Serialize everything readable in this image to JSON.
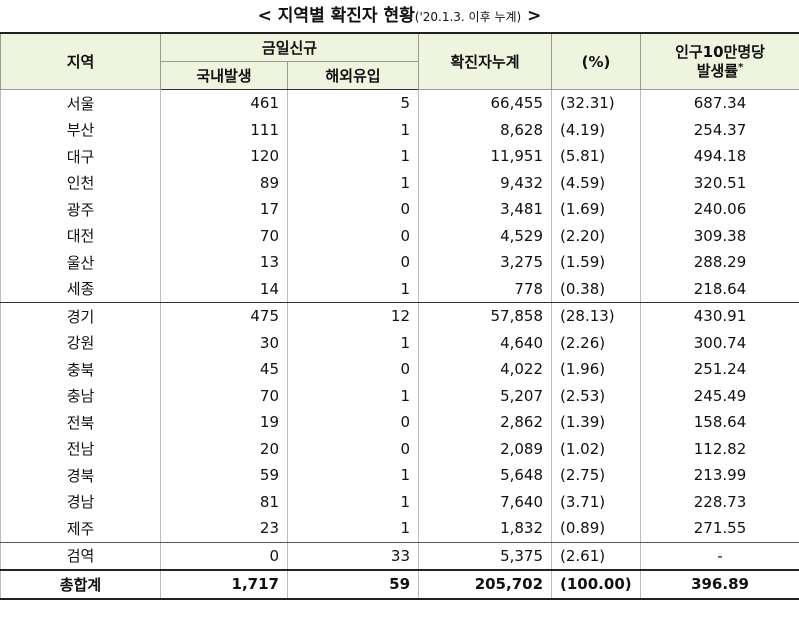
{
  "header": {
    "open": "<",
    "title": "지역별 확진자 현황",
    "note": "('20.1.3. 이후 누계)",
    "close": ">"
  },
  "table": {
    "columns": {
      "region": "지역",
      "new_today": "금일신규",
      "domestic": "국내발생",
      "imported": "해외유입",
      "cumulative": "확진자누계",
      "percent": "(%)",
      "rate_line1": "인구10만명당",
      "rate_line2": "발생률",
      "rate_mark": "*"
    },
    "rows": [
      [
        "서울",
        "461",
        "5",
        "66,455",
        "(32.31)",
        "687.34"
      ],
      [
        "부산",
        "111",
        "1",
        "8,628",
        "(4.19)",
        "254.37"
      ],
      [
        "대구",
        "120",
        "1",
        "11,951",
        "(5.81)",
        "494.18"
      ],
      [
        "인천",
        "89",
        "1",
        "9,432",
        "(4.59)",
        "320.51"
      ],
      [
        "광주",
        "17",
        "0",
        "3,481",
        "(1.69)",
        "240.06"
      ],
      [
        "대전",
        "70",
        "0",
        "4,529",
        "(2.20)",
        "309.38"
      ],
      [
        "울산",
        "13",
        "0",
        "3,275",
        "(1.59)",
        "288.29"
      ],
      [
        "세종",
        "14",
        "1",
        "778",
        "(0.38)",
        "218.64"
      ],
      [
        "경기",
        "475",
        "12",
        "57,858",
        "(28.13)",
        "430.91"
      ],
      [
        "강원",
        "30",
        "1",
        "4,640",
        "(2.26)",
        "300.74"
      ],
      [
        "충북",
        "45",
        "0",
        "4,022",
        "(1.96)",
        "251.24"
      ],
      [
        "충남",
        "70",
        "1",
        "5,207",
        "(2.53)",
        "245.49"
      ],
      [
        "전북",
        "19",
        "0",
        "2,862",
        "(1.39)",
        "158.64"
      ],
      [
        "전남",
        "20",
        "0",
        "2,089",
        "(1.02)",
        "112.82"
      ],
      [
        "경북",
        "59",
        "1",
        "5,648",
        "(2.75)",
        "213.99"
      ],
      [
        "경남",
        "81",
        "1",
        "7,640",
        "(3.71)",
        "228.73"
      ],
      [
        "제주",
        "23",
        "1",
        "1,832",
        "(0.89)",
        "271.55"
      ],
      [
        "검역",
        "0",
        "33",
        "5,375",
        "(2.61)",
        "-"
      ]
    ],
    "total": [
      "총합계",
      "1,717",
      "59",
      "205,702",
      "(100.00)",
      "396.89"
    ]
  }
}
